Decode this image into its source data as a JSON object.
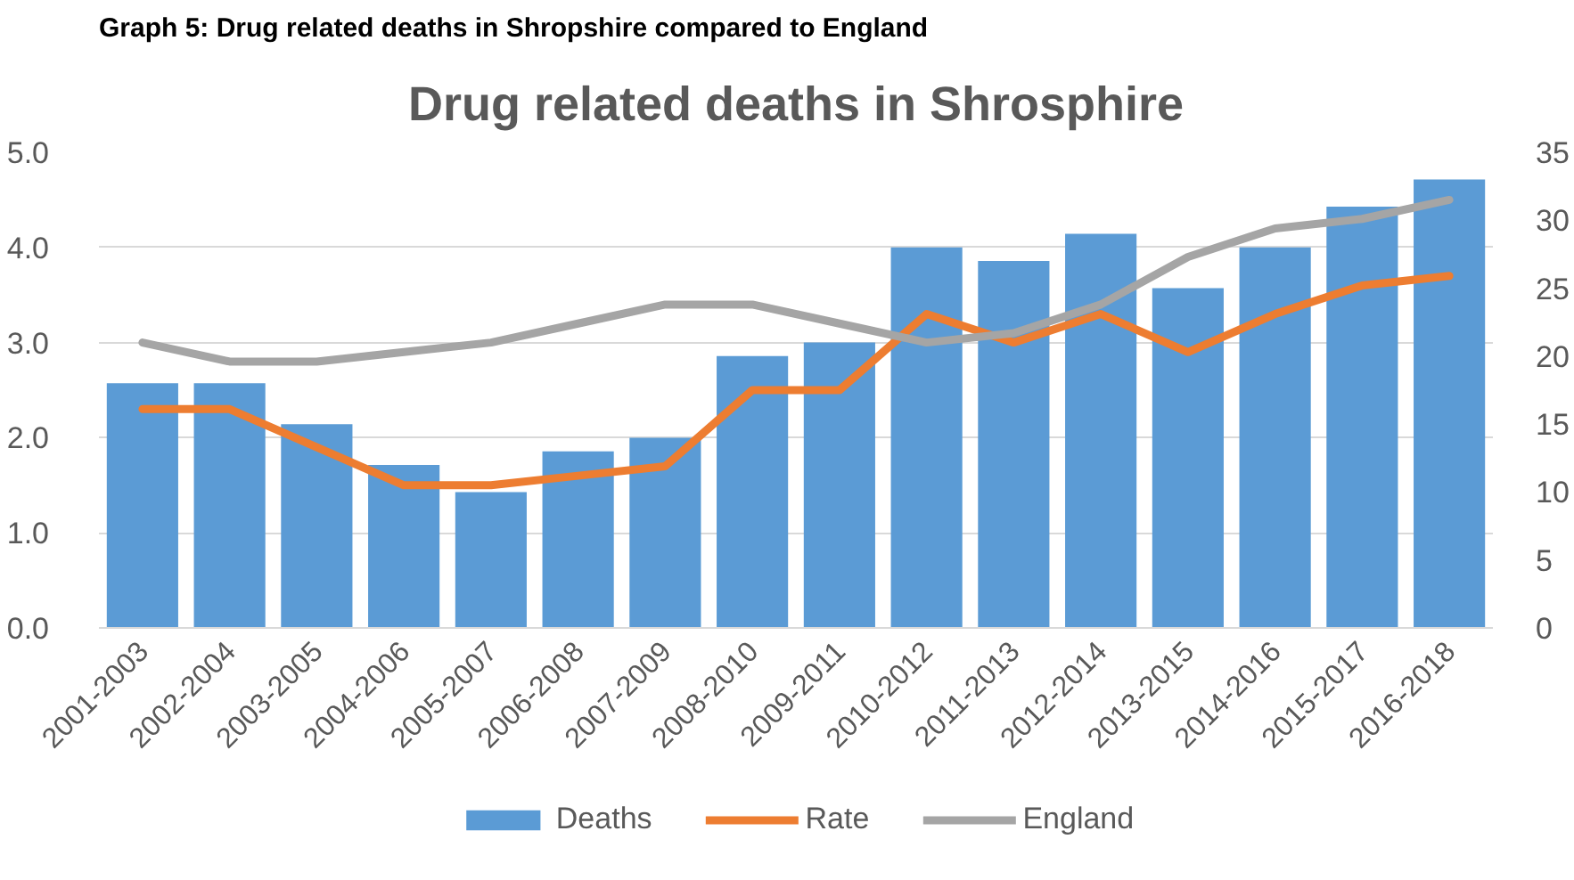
{
  "chart_data": {
    "type": "bar",
    "title": "Drug related deaths in Shrosphire",
    "annotations": [
      "Graph 5: Drug related deaths in Shropshire compared to England"
    ],
    "categories": [
      "2001-2003",
      "2002-2004",
      "2003-2005",
      "2004-2006",
      "2005-2007",
      "2006-2008",
      "2007-2009",
      "2008-2010",
      "2009-2011",
      "2010-2012",
      "2011-2013",
      "2012-2014",
      "2013-2015",
      "2014-2016",
      "2015-2017",
      "2016-2018"
    ],
    "series": [
      {
        "name": "Deaths",
        "color": "#5b9bd5",
        "axis": "y2",
        "values": [
          18,
          18,
          15,
          12,
          10,
          13,
          14,
          20,
          21,
          28,
          27,
          29,
          25,
          28,
          31,
          33
        ]
      },
      {
        "name": "Rate",
        "type": "line",
        "color": "#ed7d31",
        "values": [
          2.3,
          2.3,
          1.9,
          1.5,
          1.5,
          1.6,
          1.7,
          2.5,
          2.5,
          3.3,
          3.0,
          3.3,
          2.9,
          3.3,
          3.6,
          3.7
        ]
      },
      {
        "name": "England",
        "type": "line",
        "color": "#a5a5a5",
        "values": [
          3.0,
          2.8,
          2.8,
          2.9,
          3.0,
          3.2,
          3.4,
          3.4,
          3.2,
          3.0,
          3.1,
          3.4,
          3.9,
          4.2,
          4.3,
          4.5
        ]
      }
    ],
    "ylim": [
      0,
      5
    ],
    "yticks": [
      {
        "value": 0,
        "label": "0.0"
      },
      {
        "value": 1,
        "label": "1.0"
      },
      {
        "value": 2,
        "label": "2.0"
      },
      {
        "value": 3,
        "label": "3.0"
      },
      {
        "value": 4,
        "label": "4.0"
      },
      {
        "value": 5,
        "label": "5.0"
      }
    ],
    "y2lim": [
      0,
      35
    ],
    "y2ticks": [
      0,
      5,
      10,
      15,
      20,
      25,
      30,
      35
    ],
    "grid": "y",
    "legend": "bottom"
  }
}
